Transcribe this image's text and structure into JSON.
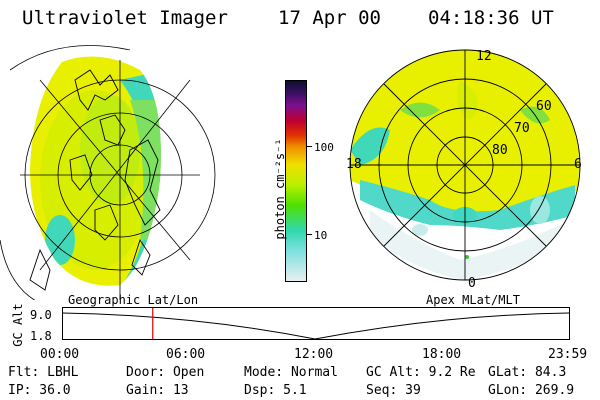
{
  "header": {
    "instrument": "Ultraviolet Imager",
    "date": "17 Apr 00",
    "time": "04:18:36 UT"
  },
  "colorbar": {
    "unit_label": "photon cm⁻²s⁻¹",
    "ticks": [
      "100",
      "10"
    ]
  },
  "left_map": {
    "label": "Geographic Lat/Lon"
  },
  "right_map": {
    "label": "Apex MLat/MLT",
    "mlt_labels": [
      "12",
      "18",
      "6",
      "0"
    ],
    "lat_labels": [
      "60",
      "70",
      "80"
    ]
  },
  "timeline": {
    "ylabel": "GC Alt",
    "y_ticks": [
      "9.0",
      "1.8"
    ],
    "x_ticks": [
      "00:00",
      "06:00",
      "12:00",
      "18:00",
      "23:59"
    ],
    "current_time_fraction": 0.179,
    "marker_color": "#e00000"
  },
  "info": {
    "row1": [
      "Flt: LBHL",
      "Door: Open",
      "Mode: Normal",
      "GC Alt: 9.2 Re",
      "GLat:  84.3"
    ],
    "row2": [
      "IP: 36.0",
      "Gain: 13",
      "Dsp:    5.1",
      "Seq: 39",
      "GLon: 269.9"
    ]
  },
  "colors": {
    "aurora_yellow": "#f0f000",
    "aurora_green": "#6ee000",
    "aurora_teal": "#40d8b8",
    "background_white": "#ffffff"
  }
}
